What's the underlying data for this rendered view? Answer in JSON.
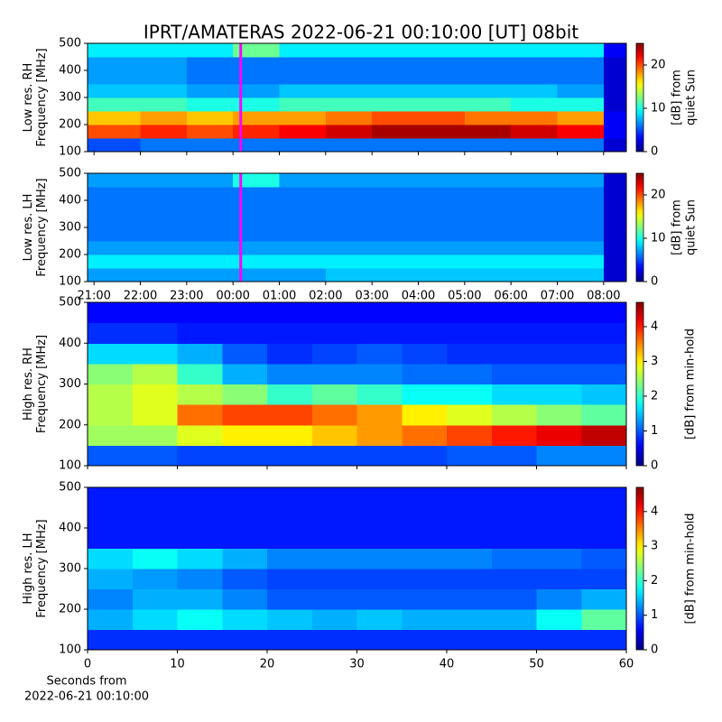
{
  "title": "IPRT/AMATERAS 2022-06-21 00:10:00 [UT]   08bit",
  "chart_data": [
    {
      "type": "heatmap",
      "ylabel": [
        "Low res. RH",
        "Frequency [MHz]"
      ],
      "colorbar_label": [
        "[dB] from",
        "quiet Sun"
      ],
      "colormap": "jet",
      "clim": [
        0,
        25
      ],
      "cticks": [
        0,
        10,
        20
      ],
      "xlim": [
        20.86,
        32.49
      ],
      "xticks": [
        21,
        22,
        23,
        24,
        25,
        26,
        27,
        28,
        29,
        30,
        31,
        32
      ],
      "xticklabels": false,
      "ylim": [
        100,
        500
      ],
      "yticks": [
        100,
        200,
        300,
        400,
        500
      ],
      "markers": [
        {
          "x": 24.1667,
          "color": "#ff00ff"
        }
      ],
      "xbins": [
        20.86,
        22,
        23,
        24,
        25,
        26,
        27,
        28,
        29,
        30,
        31,
        32,
        32.49
      ],
      "ybins": [
        100,
        150,
        200,
        250,
        300,
        350,
        400,
        450,
        500
      ],
      "z": [
        [
          5,
          6,
          6,
          6,
          6,
          6,
          6,
          6,
          6,
          6,
          6,
          2
        ],
        [
          20,
          21,
          20,
          21,
          22,
          23,
          24,
          24,
          24,
          23,
          22,
          3
        ],
        [
          17,
          18,
          17,
          18,
          18,
          19,
          20,
          20,
          19,
          19,
          18,
          3
        ],
        [
          11,
          11,
          10,
          10,
          11,
          11,
          11,
          11,
          11,
          10,
          10,
          2
        ],
        [
          8,
          8,
          7,
          7,
          8,
          8,
          8,
          8,
          8,
          8,
          7,
          2
        ],
        [
          7,
          7,
          6,
          6,
          6,
          6,
          6,
          6,
          6,
          6,
          6,
          2
        ],
        [
          7,
          7,
          6,
          6,
          6,
          6,
          6,
          6,
          6,
          6,
          6,
          2
        ],
        [
          9,
          9,
          9,
          12,
          9,
          9,
          9,
          9,
          9,
          9,
          9,
          3
        ]
      ]
    },
    {
      "type": "heatmap",
      "ylabel": [
        "Low res. LH",
        "Frequency [MHz]"
      ],
      "colorbar_label": [
        "[dB] from",
        "quiet Sun"
      ],
      "colormap": "jet",
      "clim": [
        0,
        25
      ],
      "cticks": [
        0,
        10,
        20
      ],
      "xlim": [
        20.86,
        32.49
      ],
      "xticks": [
        {
          "value": 21,
          "label": "21:00"
        },
        {
          "value": 22,
          "label": "22:00"
        },
        {
          "value": 23,
          "label": "23:00"
        },
        {
          "value": 24,
          "label": "00:00"
        },
        {
          "value": 25,
          "label": "01:00"
        },
        {
          "value": 26,
          "label": "02:00"
        },
        {
          "value": 27,
          "label": "03:00"
        },
        {
          "value": 28,
          "label": "04:00"
        },
        {
          "value": 29,
          "label": "05:00"
        },
        {
          "value": 30,
          "label": "06:00"
        },
        {
          "value": 31,
          "label": "07:00"
        },
        {
          "value": 32,
          "label": "08:00"
        }
      ],
      "xticklabels": true,
      "ylim": [
        100,
        500
      ],
      "yticks": [
        100,
        200,
        300,
        400,
        500
      ],
      "markers": [
        {
          "x": 24.1667,
          "color": "#ff00ff"
        }
      ],
      "xbins": [
        20.86,
        22,
        23,
        24,
        25,
        26,
        27,
        28,
        29,
        30,
        31,
        32,
        32.49
      ],
      "ybins": [
        100,
        150,
        200,
        250,
        300,
        350,
        400,
        450,
        500
      ],
      "z": [
        [
          7,
          7,
          7,
          7,
          7,
          8,
          8,
          8,
          8,
          8,
          8,
          2
        ],
        [
          9,
          9,
          9,
          9,
          9,
          9,
          9,
          9,
          9,
          9,
          9,
          2
        ],
        [
          7,
          7,
          7,
          7,
          7,
          7,
          7,
          7,
          7,
          7,
          7,
          2
        ],
        [
          6,
          6,
          6,
          6,
          6,
          6,
          6,
          6,
          6,
          6,
          6,
          2
        ],
        [
          6,
          6,
          6,
          6,
          6,
          6,
          6,
          6,
          6,
          6,
          6,
          2
        ],
        [
          6,
          6,
          6,
          6,
          6,
          6,
          6,
          6,
          6,
          6,
          6,
          2
        ],
        [
          6,
          6,
          6,
          6,
          6,
          6,
          6,
          6,
          6,
          6,
          6,
          2
        ],
        [
          7,
          7,
          7,
          10,
          7,
          7,
          7,
          7,
          7,
          7,
          7,
          2
        ]
      ]
    },
    {
      "type": "heatmap",
      "ylabel": [
        "High res. RH",
        "Frequency [MHz]"
      ],
      "colorbar_label": [
        "[dB] from min-hold"
      ],
      "colormap": "jet",
      "clim": [
        0,
        4.7
      ],
      "cticks": [
        0,
        1,
        2,
        3,
        4
      ],
      "xlim": [
        0,
        60
      ],
      "xticks": [
        0,
        10,
        20,
        30,
        40,
        50,
        60
      ],
      "xticklabels": false,
      "ylim": [
        100,
        500
      ],
      "yticks": [
        100,
        200,
        300,
        400,
        500
      ],
      "xbins": [
        0,
        5,
        10,
        15,
        20,
        25,
        30,
        35,
        40,
        45,
        50,
        55,
        60
      ],
      "ybins": [
        100,
        150,
        200,
        250,
        300,
        350,
        400,
        450,
        500
      ],
      "z": [
        [
          1.0,
          1.0,
          0.9,
          0.9,
          0.9,
          0.9,
          0.9,
          0.9,
          1.0,
          1.0,
          1.2,
          1.2
        ],
        [
          2.5,
          2.5,
          2.8,
          3.0,
          3.0,
          3.2,
          3.4,
          3.6,
          3.8,
          4.0,
          4.2,
          4.4
        ],
        [
          2.6,
          2.8,
          3.6,
          3.8,
          3.8,
          3.6,
          3.4,
          3.0,
          2.8,
          2.6,
          2.4,
          2.2
        ],
        [
          2.6,
          2.8,
          2.6,
          2.4,
          2.0,
          2.2,
          2.0,
          1.8,
          1.8,
          1.6,
          1.6,
          1.5
        ],
        [
          2.4,
          2.6,
          2.0,
          1.4,
          1.2,
          1.2,
          1.2,
          1.1,
          1.1,
          1.0,
          1.0,
          1.0
        ],
        [
          1.6,
          1.6,
          1.4,
          1.0,
          0.8,
          0.9,
          1.0,
          0.9,
          0.8,
          0.8,
          0.8,
          0.8
        ],
        [
          0.8,
          0.8,
          0.7,
          0.7,
          0.7,
          0.7,
          0.7,
          0.7,
          0.7,
          0.7,
          0.7,
          0.7
        ],
        [
          0.6,
          0.6,
          0.6,
          0.6,
          0.6,
          0.6,
          0.6,
          0.6,
          0.6,
          0.6,
          0.6,
          0.6
        ]
      ]
    },
    {
      "type": "heatmap",
      "ylabel": [
        "High res. LH",
        "Frequency [MHz]"
      ],
      "colorbar_label": [
        "[dB] from min-hold"
      ],
      "xlabel": [
        "Seconds from",
        "2022-06-21 00:10:00"
      ],
      "colormap": "jet",
      "clim": [
        0,
        4.7
      ],
      "cticks": [
        0,
        1,
        2,
        3,
        4
      ],
      "xlim": [
        0,
        60
      ],
      "xticks": [
        0,
        10,
        20,
        30,
        40,
        50,
        60
      ],
      "xticklabels": true,
      "ylim": [
        100,
        500
      ],
      "yticks": [
        100,
        200,
        300,
        400,
        500
      ],
      "xbins": [
        0,
        5,
        10,
        15,
        20,
        25,
        30,
        35,
        40,
        45,
        50,
        55,
        60
      ],
      "ybins": [
        100,
        150,
        200,
        250,
        300,
        350,
        400,
        450,
        500
      ],
      "z": [
        [
          0.8,
          0.8,
          0.8,
          0.8,
          0.8,
          0.8,
          0.8,
          0.8,
          0.8,
          0.8,
          0.8,
          0.8
        ],
        [
          1.4,
          1.6,
          1.8,
          1.6,
          1.5,
          1.4,
          1.5,
          1.4,
          1.4,
          1.4,
          1.8,
          2.2
        ],
        [
          1.2,
          1.4,
          1.4,
          1.2,
          1.0,
          1.0,
          1.0,
          1.0,
          1.0,
          1.0,
          1.2,
          1.4
        ],
        [
          1.4,
          1.3,
          1.2,
          1.0,
          0.9,
          0.9,
          0.9,
          0.9,
          0.9,
          0.9,
          0.9,
          0.9
        ],
        [
          1.6,
          1.8,
          1.6,
          1.4,
          1.2,
          1.2,
          1.2,
          1.2,
          1.2,
          1.1,
          1.1,
          1.0
        ],
        [
          0.7,
          0.7,
          0.7,
          0.7,
          0.7,
          0.7,
          0.7,
          0.7,
          0.7,
          0.7,
          0.7,
          0.7
        ],
        [
          0.7,
          0.7,
          0.7,
          0.7,
          0.7,
          0.7,
          0.7,
          0.7,
          0.7,
          0.7,
          0.7,
          0.7
        ],
        [
          0.7,
          0.7,
          0.7,
          0.7,
          0.7,
          0.7,
          0.7,
          0.7,
          0.7,
          0.7,
          0.7,
          0.7
        ]
      ]
    }
  ]
}
